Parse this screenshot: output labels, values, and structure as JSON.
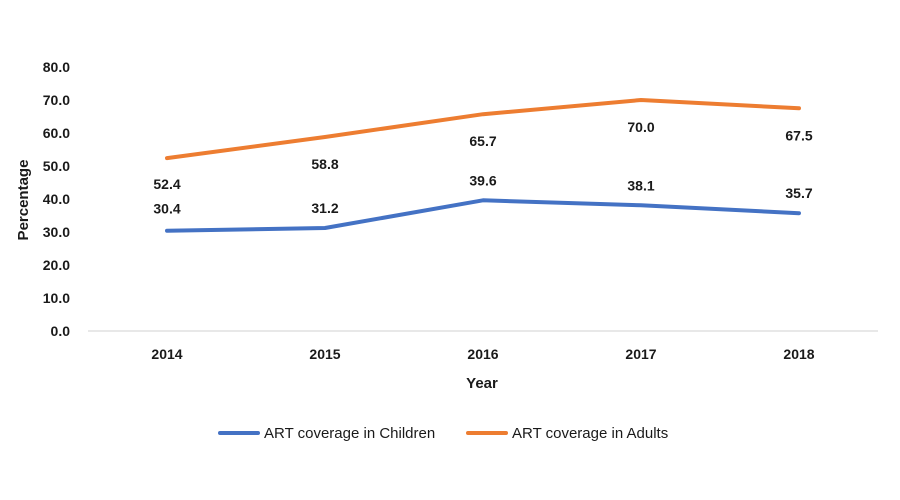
{
  "chart_data": {
    "type": "line",
    "title": "",
    "xlabel": "Year",
    "ylabel": "Percentage",
    "ylim": [
      0,
      80
    ],
    "yticks": [
      "0.0",
      "10.0",
      "20.0",
      "30.0",
      "40.0",
      "50.0",
      "60.0",
      "70.0",
      "80.0"
    ],
    "categories": [
      "2014",
      "2015",
      "2016",
      "2017",
      "2018"
    ],
    "grid": false,
    "legend_position": "bottom",
    "series": [
      {
        "name": "ART coverage in Children",
        "color": "#4472C4",
        "values": [
          30.4,
          31.2,
          39.6,
          38.1,
          35.7
        ],
        "labels": [
          "30.4",
          "31.2",
          "39.6",
          "38.1",
          "35.7"
        ]
      },
      {
        "name": "ART coverage in Adults",
        "color": "#ED7D31",
        "values": [
          52.4,
          58.8,
          65.7,
          70.0,
          67.5
        ],
        "labels": [
          "52.4",
          "58.8",
          "65.7",
          "70.0",
          "67.5"
        ]
      }
    ]
  }
}
